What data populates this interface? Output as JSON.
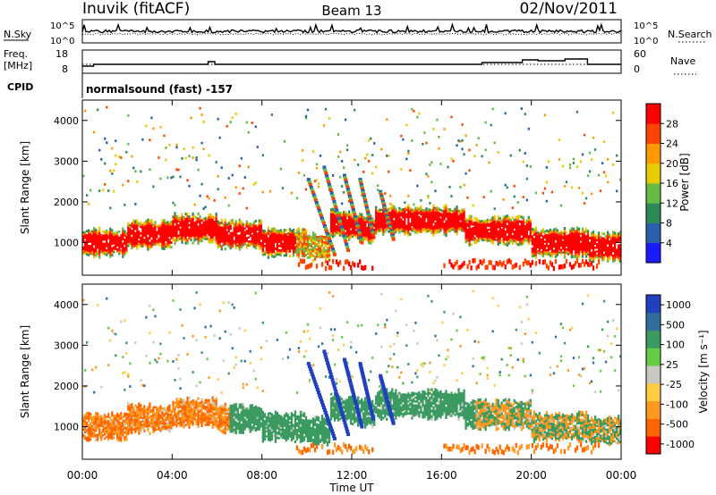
{
  "header": {
    "station": "Inuvik (fitACF)",
    "beam": "Beam 13",
    "date": "02/Nov/2011"
  },
  "sky_panel": {
    "left_label": "N.Sky",
    "right_label": "N.Search",
    "left_ticks": [
      "10^5",
      "10^0"
    ],
    "right_ticks": [
      "10^5",
      "10^0"
    ]
  },
  "freq_panel": {
    "left_label_1": "Freq.",
    "left_label_2": "[MHz]",
    "right_label": "Nave",
    "left_ticks": [
      "18",
      "8"
    ],
    "right_ticks": [
      "60",
      "0"
    ]
  },
  "cpid": {
    "label": "CPID",
    "text": "normalsound (fast) -157"
  },
  "chart_data": [
    {
      "type": "heatmap",
      "name": "power",
      "xlabel": "",
      "ylabel": "Slant Range [km]",
      "x_ticks": [
        "00:00",
        "04:00",
        "08:00",
        "12:00",
        "16:00",
        "20:00",
        "00:00"
      ],
      "y_ticks": [
        1000,
        2000,
        3000,
        4000
      ],
      "ylim": [
        200,
        4500
      ],
      "xlim_hours": [
        0,
        24
      ],
      "colorbar": {
        "label": "Power [dB]",
        "ticks": [
          4,
          8,
          12,
          16,
          20,
          24,
          28
        ],
        "colors": [
          "#1a1aff",
          "#2a5fb0",
          "#2e8b57",
          "#66bb44",
          "#e6cc00",
          "#ff9900",
          "#ff4400",
          "#ff0000"
        ]
      }
    },
    {
      "type": "heatmap",
      "name": "velocity",
      "xlabel": "Time UT",
      "ylabel": "Slant Range [km]",
      "x_ticks": [
        "00:00",
        "04:00",
        "08:00",
        "12:00",
        "16:00",
        "20:00",
        "00:00"
      ],
      "y_ticks": [
        1000,
        2000,
        3000,
        4000
      ],
      "ylim": [
        200,
        4500
      ],
      "xlim_hours": [
        0,
        24
      ],
      "colorbar": {
        "label": "Velocity [m s⁻¹]",
        "ticks": [
          "1000",
          "500",
          "100",
          "25",
          "-25",
          "-100",
          "-500",
          "-1000"
        ],
        "colors": [
          "#2040c0",
          "#2e6f9e",
          "#3a9a60",
          "#66cc44",
          "#c8c8c0",
          "#ffcc44",
          "#ff9922",
          "#ff6600",
          "#ff0000"
        ]
      }
    }
  ]
}
